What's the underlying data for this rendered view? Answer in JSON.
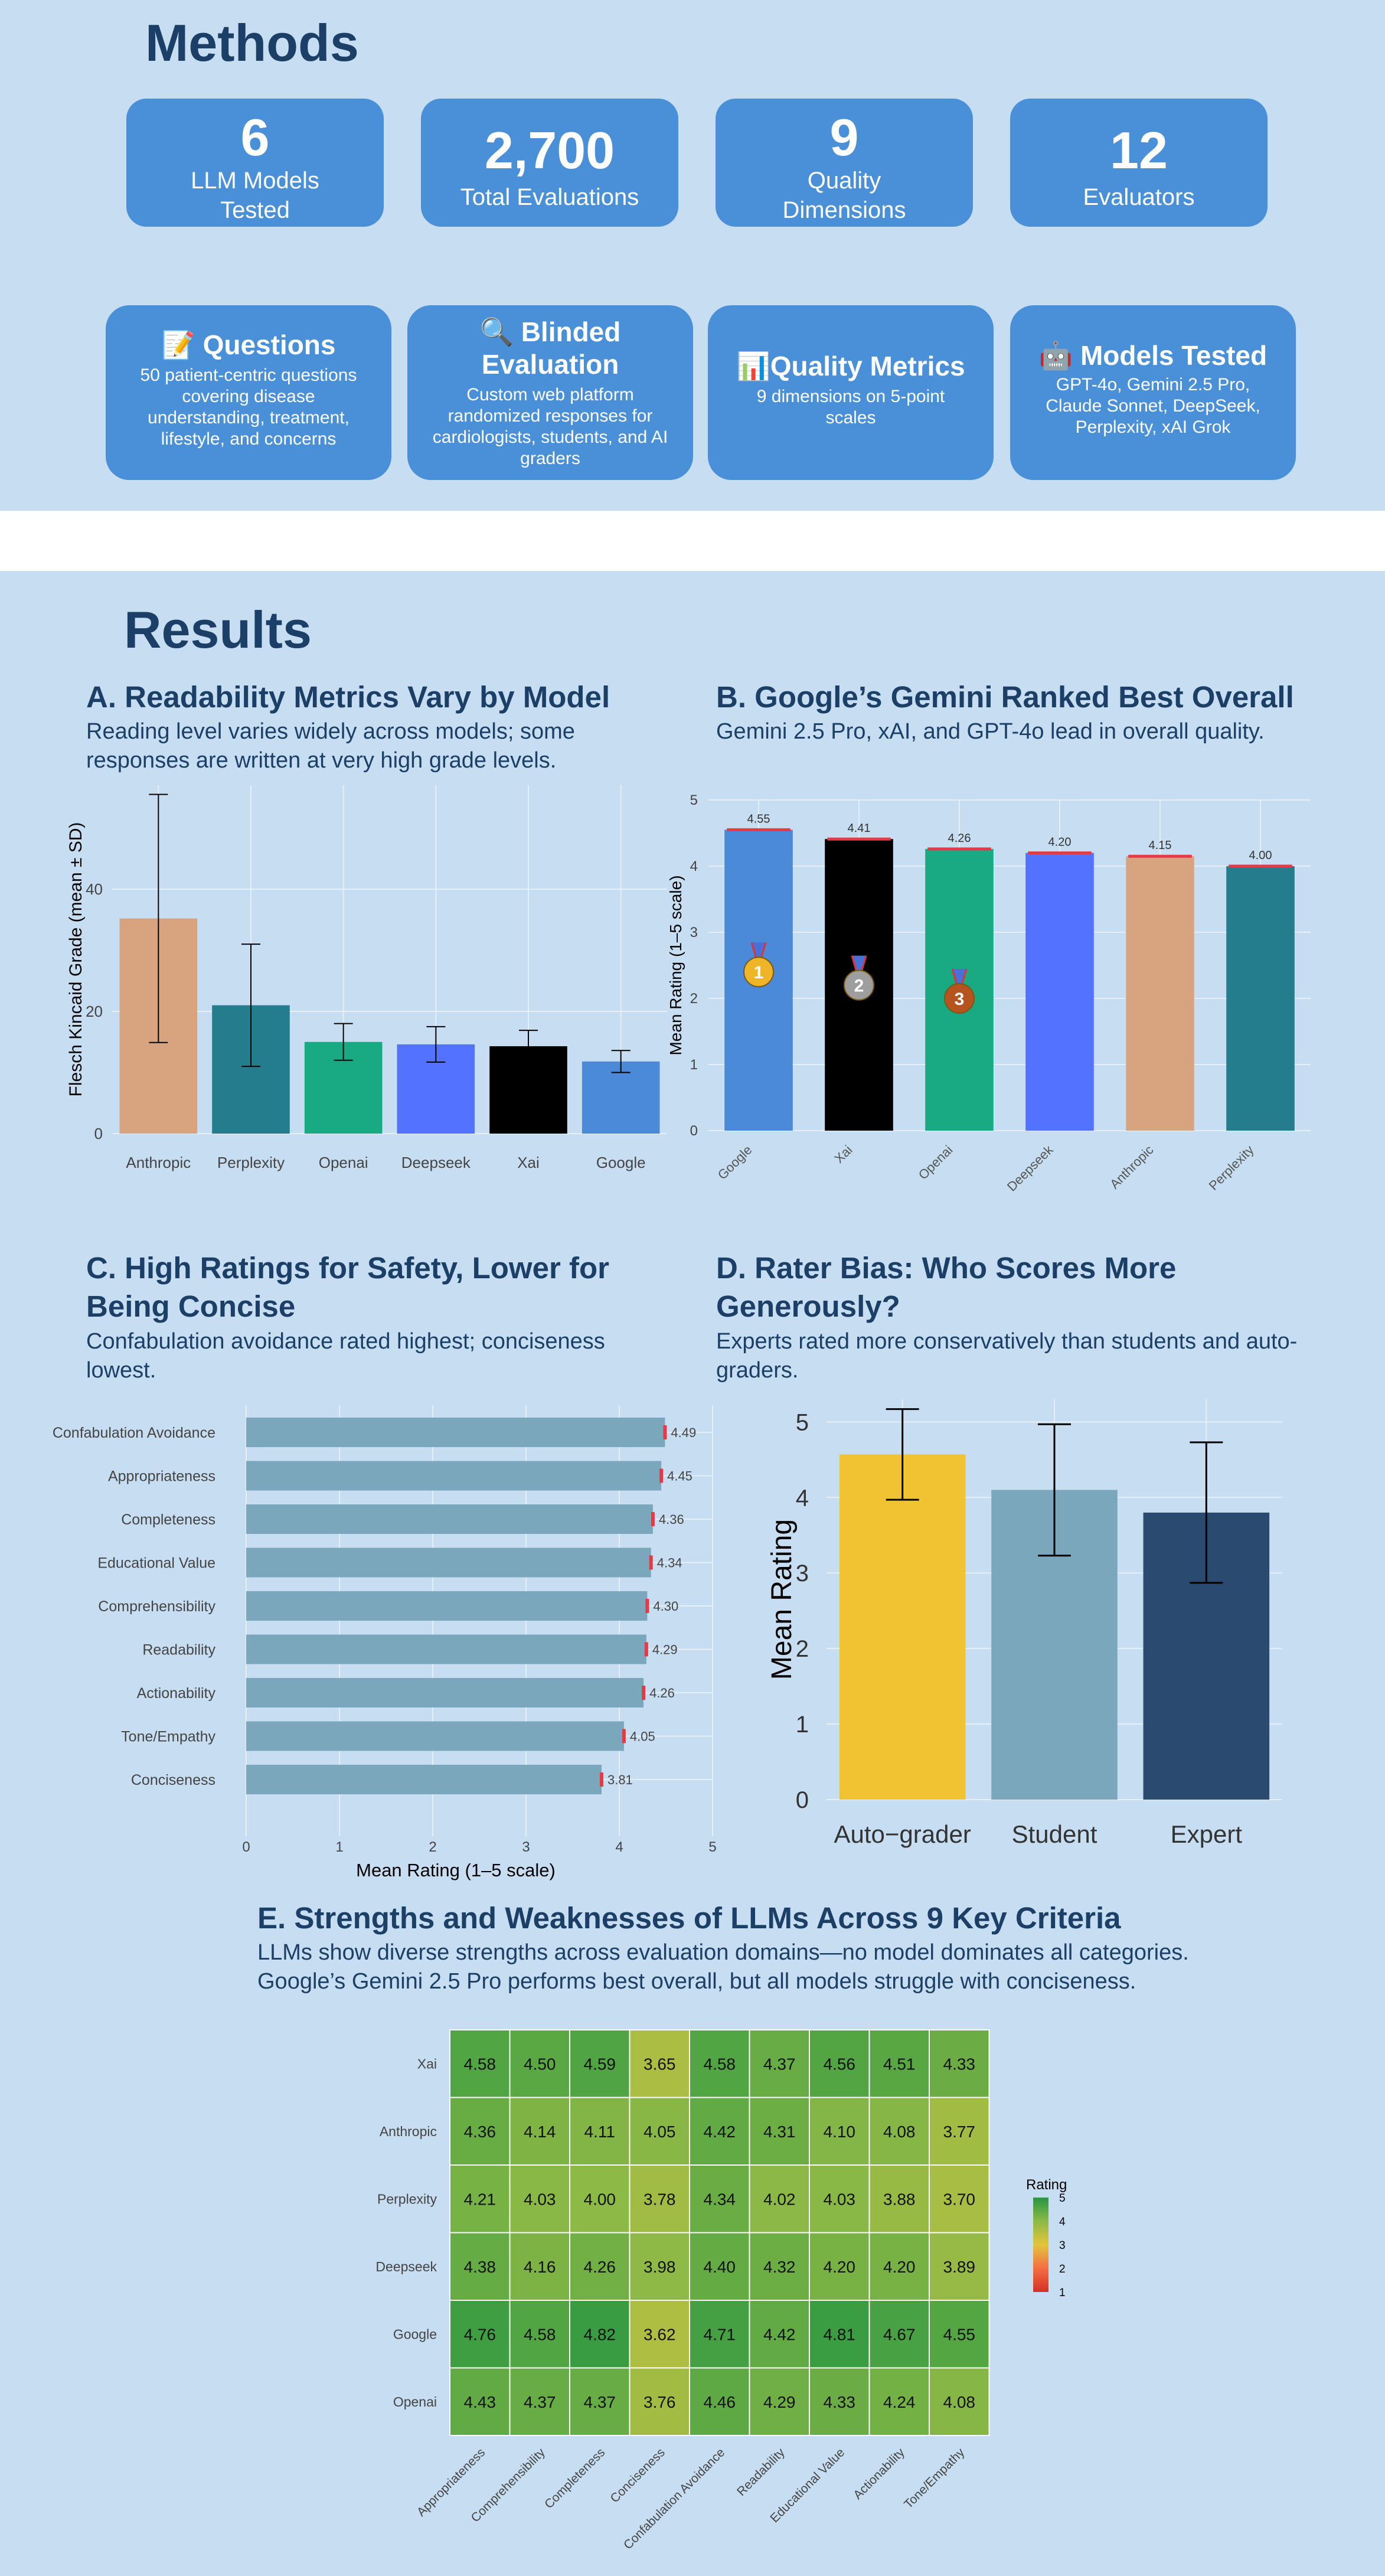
{
  "methods": {
    "title": "Methods",
    "stats": [
      {
        "number": "6",
        "label": "LLM Models Tested"
      },
      {
        "number": "2,700",
        "label": "Total Evaluations"
      },
      {
        "number": "9",
        "label": "Quality Dimensions"
      },
      {
        "number": "12",
        "label": "Evaluators"
      }
    ],
    "cards": [
      {
        "icon": "📝",
        "icon_name": "memo-icon",
        "title": "Questions",
        "body": "50 patient-centric questions covering disease understanding, treatment, lifestyle, and concerns"
      },
      {
        "icon": "🔍",
        "icon_name": "magnifier-icon",
        "title": "Blinded Evaluation",
        "body": "Custom web platform randomized responses for cardiologists, students, and AI graders"
      },
      {
        "icon": "📊",
        "icon_name": "bar-chart-icon",
        "title": "Quality Metrics",
        "body": "9 dimensions on 5-point scales"
      },
      {
        "icon": "🤖",
        "icon_name": "robot-icon",
        "title": "Models Tested",
        "body": "GPT-4o, Gemini 2.5 Pro, Claude Sonnet, DeepSeek, Perplexity, xAI Grok"
      }
    ]
  },
  "results": {
    "title": "Results",
    "panels": {
      "a": {
        "title": "A. Readability Metrics Vary by Model",
        "subtitle": "Reading level varies widely across models; some responses are written at very high grade levels."
      },
      "b": {
        "title": "B. Google’s Gemini Ranked Best Overall",
        "subtitle": "Gemini 2.5 Pro, xAI, and GPT-4o lead in overall quality."
      },
      "c": {
        "title": "C. High Ratings for Safety, Lower for Being Concise",
        "subtitle": "Confabulation avoidance rated highest; conciseness lowest."
      },
      "d": {
        "title": "D. Rater Bias: Who Scores More Generously?",
        "subtitle": "Experts rated more conservatively than students and auto-graders."
      },
      "e": {
        "title": "E. Strengths and Weaknesses of LLMs Across 9 Key Criteria",
        "subtitle": "LLMs show diverse strengths across evaluation domains—no model dominates all categories. Google’s Gemini 2.5 Pro performs best overall, but all models struggle with conciseness."
      }
    }
  },
  "colors": {
    "accent": "#4a90d9",
    "title": "#1b3f66",
    "background": "#c7ddf1"
  },
  "chart_data": [
    {
      "id": "A",
      "type": "bar",
      "ylabel": "Flesch Kincaid Grade (mean ± SD)",
      "xlabel": "",
      "categories": [
        "Anthropic",
        "Perplexity",
        "Openai",
        "Deepseek",
        "Xai",
        "Google"
      ],
      "values": [
        35.2,
        21.0,
        15.0,
        14.6,
        14.3,
        11.8
      ],
      "sd": [
        20.3,
        10.0,
        3.0,
        2.9,
        2.6,
        1.8
      ],
      "colors": [
        "#d8a47f",
        "#237d8c",
        "#1aaa83",
        "#5272ff",
        "#000000",
        "#4a8ad8"
      ],
      "ylim": [
        0,
        57
      ],
      "yticks": [
        0,
        20,
        40
      ],
      "grid": true
    },
    {
      "id": "B",
      "type": "bar",
      "ylabel": "Mean Rating (1–5 scale)",
      "xlabel": "",
      "categories": [
        "Google",
        "Xai",
        "Openai",
        "Deepseek",
        "Anthropic",
        "Perplexity"
      ],
      "values": [
        4.55,
        4.41,
        4.26,
        4.2,
        4.15,
        4.0
      ],
      "labels": [
        "4.55",
        "4.41",
        "4.26",
        "4.20",
        "4.15",
        "4.00"
      ],
      "medals": [
        "1",
        "2",
        "3"
      ],
      "colors": [
        "#4a8ad8",
        "#000000",
        "#1aaa83",
        "#5272ff",
        "#d8a47f",
        "#237d8c"
      ],
      "ylim": [
        0,
        5
      ],
      "yticks": [
        0,
        1,
        2,
        3,
        4,
        5
      ],
      "grid": true
    },
    {
      "id": "C",
      "type": "bar",
      "orientation": "horizontal",
      "xlabel": "Mean Rating (1–5 scale)",
      "ylabel": "",
      "categories": [
        "Confabulation Avoidance",
        "Appropriateness",
        "Completeness",
        "Educational Value",
        "Comprehensibility",
        "Readability",
        "Actionability",
        "Tone/Empathy",
        "Conciseness"
      ],
      "values": [
        4.49,
        4.45,
        4.36,
        4.34,
        4.3,
        4.29,
        4.26,
        4.05,
        3.81
      ],
      "labels": [
        "4.49",
        "4.45",
        "4.36",
        "4.34",
        "4.30",
        "4.29",
        "4.26",
        "4.05",
        "3.81"
      ],
      "color": "#7ba7bc",
      "xlim": [
        0,
        5
      ],
      "xticks": [
        0,
        1,
        2,
        3,
        4,
        5
      ],
      "grid": true
    },
    {
      "id": "D",
      "type": "bar",
      "ylabel": "Mean Rating",
      "xlabel": "",
      "categories": [
        "Auto−grader",
        "Student",
        "Expert"
      ],
      "values": [
        4.57,
        4.1,
        3.8
      ],
      "sd": [
        0.6,
        0.87,
        0.93
      ],
      "colors": [
        "#f1c232",
        "#7ba7bc",
        "#2a4a70"
      ],
      "ylim": [
        0,
        5.3
      ],
      "yticks": [
        0,
        1,
        2,
        3,
        4,
        5
      ],
      "grid": true
    },
    {
      "id": "E",
      "type": "heatmap",
      "rows": [
        "Xai",
        "Anthropic",
        "Perplexity",
        "Deepseek",
        "Google",
        "Openai"
      ],
      "columns": [
        "Appropriateness",
        "Comprehensibility",
        "Completeness",
        "Conciseness",
        "Confabulation Avoidance",
        "Readability",
        "Educational Value",
        "Actionability",
        "Tone/Empathy"
      ],
      "values": [
        [
          4.58,
          4.5,
          4.59,
          3.65,
          4.58,
          4.37,
          4.56,
          4.51,
          4.33
        ],
        [
          4.36,
          4.14,
          4.11,
          4.05,
          4.42,
          4.31,
          4.1,
          4.08,
          3.77
        ],
        [
          4.21,
          4.03,
          4.0,
          3.78,
          4.34,
          4.02,
          4.03,
          3.88,
          3.7
        ],
        [
          4.38,
          4.16,
          4.26,
          3.98,
          4.4,
          4.32,
          4.2,
          4.2,
          3.89
        ],
        [
          4.76,
          4.58,
          4.82,
          3.62,
          4.71,
          4.42,
          4.81,
          4.67,
          4.55
        ],
        [
          4.43,
          4.37,
          4.37,
          3.76,
          4.46,
          4.29,
          4.33,
          4.24,
          4.08
        ]
      ],
      "legend": {
        "title": "Rating",
        "ticks": [
          5,
          4,
          3,
          2,
          1
        ],
        "range": [
          1,
          5
        ],
        "position": "right"
      }
    }
  ]
}
